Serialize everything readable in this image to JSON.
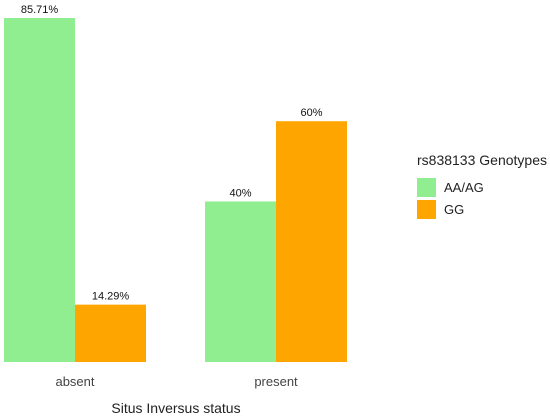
{
  "chart_data": {
    "type": "bar",
    "categories": [
      "absent",
      "present"
    ],
    "series": [
      {
        "name": "AA/AG",
        "values": [
          85.71,
          40
        ],
        "labels": [
          "85.71%",
          "40%"
        ],
        "color": "#90EE90"
      },
      {
        "name": "GG",
        "values": [
          14.29,
          60
        ],
        "labels": [
          "14.29%",
          "60%"
        ],
        "color": "#FFA500"
      }
    ],
    "xlabel": "Situs Inversus status",
    "ylabel": "",
    "ylim": [
      0,
      100
    ],
    "grid": false,
    "legend_title": "rs838133 Genotypes",
    "legend_position": "right"
  }
}
